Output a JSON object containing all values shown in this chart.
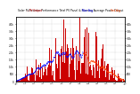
{
  "title": "Solar PV/Inverter Performance Total PV Panel & Running Average Power Output",
  "background_color": "#ffffff",
  "plot_bg_color": "#ffffff",
  "grid_color": "#aaaaaa",
  "bar_color": "#cc0000",
  "avg_color_blue": "#0000ff",
  "avg_color_red": "#ff4400",
  "ylim": [
    0,
    4500
  ],
  "yticks_left": [
    0,
    500,
    1000,
    1500,
    2000,
    2500,
    3000,
    3500,
    4000
  ],
  "ytick_labels_left": [
    "0",
    "500",
    "1.0k",
    "1.5k",
    "2.0k",
    "2.5k",
    "3.0k",
    "3.5k",
    "4.0k"
  ],
  "yticks_right": [
    500,
    1000,
    1500,
    2000,
    2500,
    3000,
    3500,
    4000
  ],
  "ytick_labels_right": [
    "500",
    "1.0k",
    "1.5k",
    "2.0k",
    "2.5k",
    "3.0k",
    "3.5k",
    "4.0k"
  ],
  "n_points": 2000,
  "seed": 7
}
